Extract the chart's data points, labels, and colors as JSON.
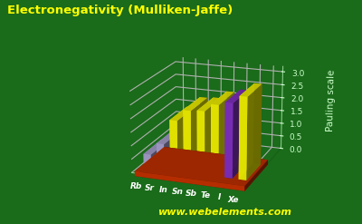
{
  "title": "Electronegativity (Mulliken-Jaffe)",
  "ylabel": "Pauling scale",
  "watermark": "www.webelements.com",
  "categories": [
    "Rb",
    "Sr",
    "In",
    "Sn",
    "Sb",
    "Te",
    "I",
    "Xe"
  ],
  "values": [
    0.49,
    0.95,
    1.88,
    2.3,
    2.34,
    2.62,
    2.74,
    3.02
  ],
  "bar_colors": [
    "#b0a8d8",
    "#b0a8d8",
    "#ffff00",
    "#ffff00",
    "#ffff00",
    "#ffff00",
    "#8833cc",
    "#ffff00"
  ],
  "ylim": [
    0.0,
    3.2
  ],
  "yticks": [
    0.0,
    0.5,
    1.0,
    1.5,
    2.0,
    2.5,
    3.0
  ],
  "background_color": "#1a6b1a",
  "grid_color": "#ccffcc",
  "title_color": "#ffff00",
  "title_fontsize": 9.5,
  "ylabel_color": "#ccffcc",
  "tick_color": "#ccffcc",
  "watermark_color": "#ffff00",
  "xlabel_color": "#ffffff",
  "base_color": "#cc3300",
  "elev": 18,
  "azim": -70
}
